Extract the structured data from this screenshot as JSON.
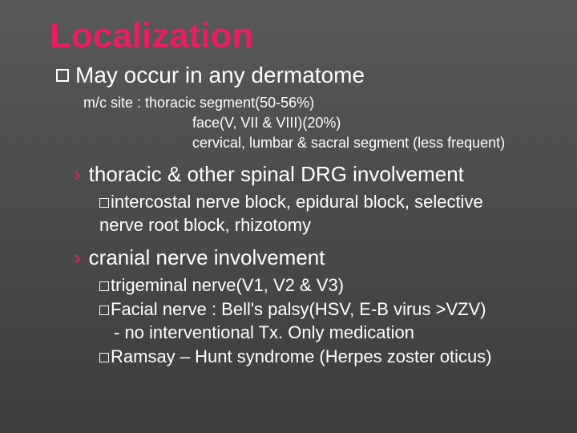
{
  "title": "Localization",
  "main": "May occur in any dermatome",
  "sub1_line1": "m/c site : thoracic segment(50-56%)",
  "sub1_line2": "face(V, VII & VIII)(20%)",
  "sub1_line3": "cervical, lumbar & sacral segment (less frequent)",
  "sec1_title": "thoracic & other spinal DRG involvement",
  "sec1_item1": "intercostal nerve block, epidural block, selective",
  "sec1_item1b": "nerve root block, rhizotomy",
  "sec2_title": "cranial nerve involvement",
  "sec2_item1": "trigeminal nerve(V1, V2 & V3)",
  "sec2_item2": "Facial nerve : Bell's palsy(HSV, E-B virus >VZV)",
  "sec2_item2b": "- no interventional Tx. Only medication",
  "sec2_item3": "Ramsay – Hunt syndrome (Herpes zoster oticus)"
}
